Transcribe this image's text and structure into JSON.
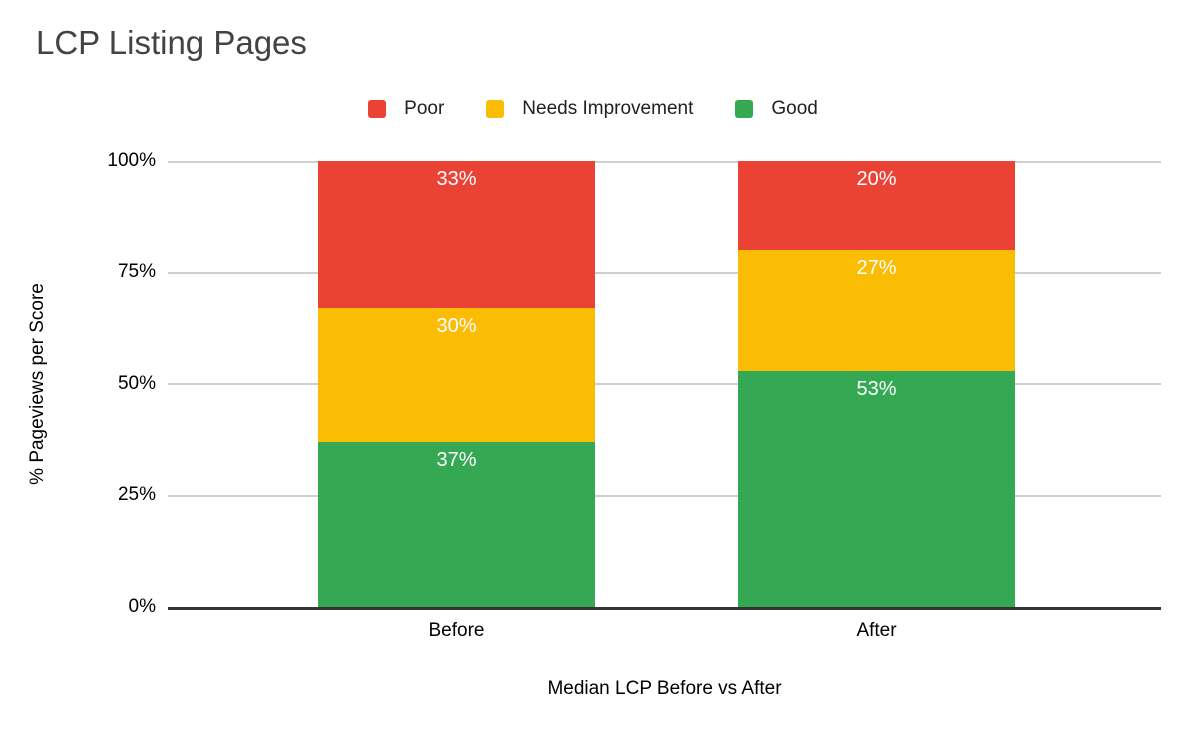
{
  "title": "LCP Listing Pages",
  "legend": {
    "items": [
      {
        "label": "Poor",
        "color": "#EA4335"
      },
      {
        "label": "Needs Improvement",
        "color": "#FBBC04"
      },
      {
        "label": "Good",
        "color": "#34A853"
      }
    ]
  },
  "y_axis": {
    "title": "% Pageviews per Score",
    "ticks": [
      "100%",
      "75%",
      "50%",
      "25%",
      "0%"
    ]
  },
  "x_axis": {
    "title": "Median LCP Before vs After",
    "categories": [
      "Before",
      "After"
    ]
  },
  "chart_data": {
    "type": "bar",
    "stacked": true,
    "title": "LCP Listing Pages",
    "xlabel": "Median LCP Before vs After",
    "ylabel": "% Pageviews per Score",
    "categories": [
      "Before",
      "After"
    ],
    "series": [
      {
        "name": "Good",
        "color": "#34A853",
        "values": [
          37,
          53
        ]
      },
      {
        "name": "Needs Improvement",
        "color": "#FBBC04",
        "values": [
          30,
          27
        ]
      },
      {
        "name": "Poor",
        "color": "#EA4335",
        "values": [
          33,
          20
        ]
      }
    ],
    "ylim": [
      0,
      100
    ],
    "y_tick_labels": [
      "0%",
      "25%",
      "50%",
      "75%",
      "100%"
    ],
    "grid": true,
    "legend_position": "top",
    "value_label_format": "{value}%",
    "value_label_color": "#ffffff"
  },
  "colors": {
    "background": "#ffffff",
    "title_text": "#434343",
    "axis_text": "#000000",
    "gridline": "#cfcfcf",
    "axis_line": "#333333"
  }
}
